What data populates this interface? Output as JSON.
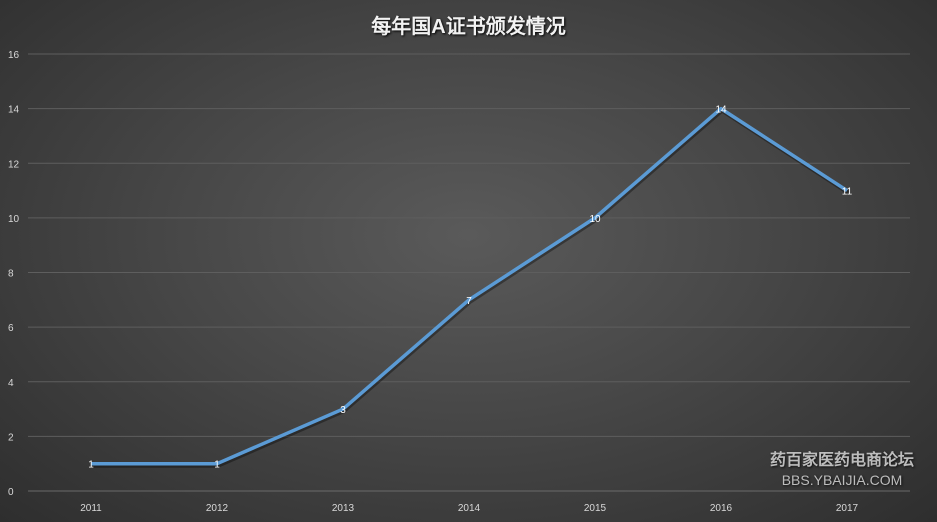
{
  "chart_data": {
    "type": "line",
    "title": "每年国A证书颁发情况",
    "categories": [
      "2011",
      "2012",
      "2013",
      "2014",
      "2015",
      "2016",
      "2017"
    ],
    "values": [
      1,
      1,
      3,
      7,
      10,
      14,
      11
    ],
    "ylim": [
      0,
      16
    ],
    "yticks": [
      0,
      2,
      4,
      6,
      8,
      10,
      12,
      14,
      16
    ],
    "grid": true,
    "data_labels": true,
    "line_color": "#5b9bd5"
  },
  "watermark": {
    "line1": "药百家医药电商论坛",
    "line2": "BBS.YBAIJIA.COM"
  }
}
